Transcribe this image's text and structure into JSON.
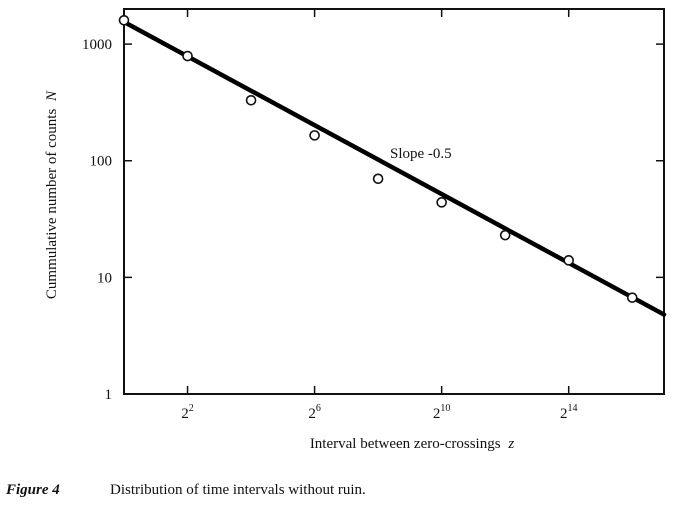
{
  "chart_data": {
    "type": "scatter",
    "xscale": "log2",
    "yscale": "log10",
    "xlabel_text": "Interval between zero-crossings",
    "xlabel_var": "z",
    "ylabel_text": "Cummulative number of counts",
    "ylabel_var": "N",
    "xlim": [
      1,
      131072
    ],
    "ylim": [
      1,
      2000
    ],
    "x_ticks": [
      {
        "value": 4,
        "base": "2",
        "exp": "2"
      },
      {
        "value": 64,
        "base": "2",
        "exp": "6"
      },
      {
        "value": 1024,
        "base": "2",
        "exp": "10"
      },
      {
        "value": 16384,
        "base": "2",
        "exp": "14"
      }
    ],
    "y_ticks": [
      {
        "value": 1,
        "label": "1"
      },
      {
        "value": 10,
        "label": "10"
      },
      {
        "value": 100,
        "label": "100"
      },
      {
        "value": 1000,
        "label": "1000"
      }
    ],
    "points": [
      {
        "x": 1,
        "y": 1600
      },
      {
        "x": 4,
        "y": 790
      },
      {
        "x": 16,
        "y": 330
      },
      {
        "x": 64,
        "y": 165
      },
      {
        "x": 256,
        "y": 70
      },
      {
        "x": 1024,
        "y": 44
      },
      {
        "x": 4096,
        "y": 23
      },
      {
        "x": 16384,
        "y": 14
      },
      {
        "x": 65536,
        "y": 6.7
      }
    ],
    "fit_line": {
      "x": [
        1,
        131072
      ],
      "y": [
        1550,
        4.8
      ]
    },
    "annotation": "Slope -0.5",
    "grid": false
  },
  "caption": {
    "figure_number": "Figure 4",
    "text": "Distribution of time intervals without ruin."
  }
}
